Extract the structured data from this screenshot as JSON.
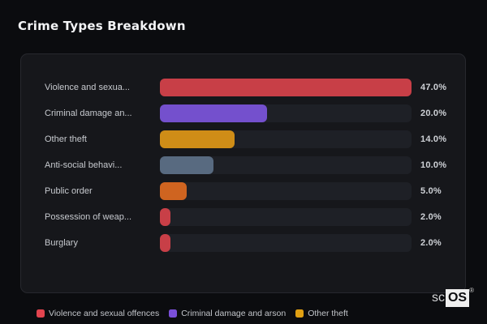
{
  "page": {
    "background": "#0b0c0f",
    "panel_background": "#16171b",
    "track_color": "#1e2026"
  },
  "chart_data": {
    "type": "bar",
    "orientation": "horizontal",
    "title": "Crime Types Breakdown",
    "xlabel": "",
    "ylabel": "",
    "xlim": [
      0,
      47
    ],
    "grid": false,
    "legend_position": "bottom",
    "value_suffix": "%",
    "rows": [
      {
        "label": "Violence and sexua...",
        "value": 47.0,
        "value_label": "47.0%",
        "color": "#c83f47"
      },
      {
        "label": "Criminal damage an...",
        "value": 20.0,
        "value_label": "20.0%",
        "color": "#7450cd"
      },
      {
        "label": "Other theft",
        "value": 14.0,
        "value_label": "14.0%",
        "color": "#cf8d17"
      },
      {
        "label": "Anti-social behavi...",
        "value": 10.0,
        "value_label": "10.0%",
        "color": "#586a80"
      },
      {
        "label": "Public order",
        "value": 5.0,
        "value_label": "5.0%",
        "color": "#cf6420"
      },
      {
        "label": "Possession of weap...",
        "value": 2.0,
        "value_label": "2.0%",
        "color": "#c83f47"
      },
      {
        "label": "Burglary",
        "value": 2.0,
        "value_label": "2.0%",
        "color": "#c83f47"
      }
    ],
    "legend": [
      {
        "label": "Violence and sexual offences",
        "color": "#e2444e"
      },
      {
        "label": "Criminal damage and arson",
        "color": "#7a4fd9"
      },
      {
        "label": "Other theft",
        "color": "#e0a013"
      }
    ]
  },
  "logo": {
    "prefix": "sc",
    "box": "OS",
    "registered": "®"
  }
}
